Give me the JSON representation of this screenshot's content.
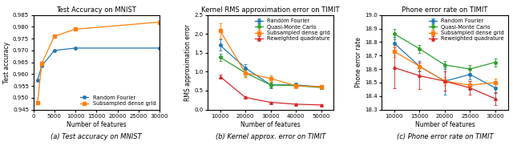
{
  "chart_data": [
    {
      "type": "line",
      "title": "Test Accuracy on MNIST",
      "x_label": "Number of features",
      "y_label": "Test accuracy",
      "annotations": [
        "(a) Test accuracy on MNIST"
      ],
      "xlim": [
        0,
        30000
      ],
      "ylim": [
        0.945,
        0.985
      ],
      "xticks": [
        0,
        5000,
        10000,
        15000,
        20000,
        25000,
        30000
      ],
      "yticks": [
        0.945,
        {
          "value": 0.95,
          "label": "0.950"
        },
        0.955,
        {
          "value": 0.96,
          "label": "0.960"
        },
        0.965,
        {
          "value": 0.97,
          "label": "0.970"
        },
        0.975,
        {
          "value": 0.98,
          "label": "0.980"
        },
        0.985
      ],
      "legend": "lower right",
      "grid": false,
      "series": [
        {
          "name": "Random Fourier",
          "marker": "o",
          "x": [
            1000,
            2000,
            5000,
            10000,
            30000
          ],
          "values": [
            0.9575,
            0.9635,
            0.97,
            0.971,
            0.971
          ]
        },
        {
          "name": "Subsampled dense grid",
          "marker": "s",
          "x": [
            1000,
            2000,
            5000,
            10000,
            30000
          ],
          "values": [
            0.948,
            0.9645,
            0.976,
            0.979,
            0.982
          ]
        }
      ]
    },
    {
      "type": "line",
      "title": "Kernel RMS approximation error on TIMIT",
      "x_label": "Number of features",
      "y_label": "RMS approximation error",
      "annotations": [
        "(b) Kernel approx. error on TIMIT"
      ],
      "xlim": [
        5000,
        55000
      ],
      "ylim": [
        0,
        2.5
      ],
      "xticks": [
        10000,
        20000,
        30000,
        40000,
        50000
      ],
      "yticks": [
        {
          "value": 0,
          "label": "0.0"
        },
        0.5,
        {
          "value": 1,
          "label": "1.0"
        },
        1.5,
        {
          "value": 2,
          "label": "2.0"
        },
        2.5
      ],
      "legend": "upper right",
      "grid": false,
      "series": [
        {
          "name": "Random Fourier",
          "marker": "o",
          "x": [
            10000,
            20000,
            30000,
            40000,
            50000
          ],
          "values": [
            1.7,
            1.1,
            0.65,
            0.65,
            0.6
          ],
          "yerr": [
            0.15,
            0.1,
            0.08,
            0.06,
            0.05
          ]
        },
        {
          "name": "Quasi-Monte Carlo",
          "marker": "o",
          "x": [
            10000,
            20000,
            30000,
            40000,
            50000
          ],
          "values": [
            1.38,
            0.97,
            0.65,
            0.63,
            0.58
          ],
          "yerr": [
            0.1,
            0.08,
            0.06,
            0.05,
            0.04
          ]
        },
        {
          "name": "Subsampled dense grid",
          "marker": "s",
          "x": [
            10000,
            20000,
            30000,
            40000,
            50000
          ],
          "values": [
            2.08,
            0.97,
            0.82,
            0.63,
            0.6
          ],
          "yerr": [
            0.2,
            0.12,
            0.08,
            0.06,
            0.05
          ]
        },
        {
          "name": "Reweighted quadrature",
          "marker": "^",
          "x": [
            10000,
            20000,
            30000,
            40000,
            50000
          ],
          "values": [
            0.87,
            0.32,
            0.19,
            0.14,
            0.12
          ],
          "yerr": [
            0.05,
            0.03,
            0.02,
            0.02,
            0.01
          ]
        }
      ]
    },
    {
      "type": "line",
      "title": "Phone error rate on TIMIT",
      "x_label": "Number of features",
      "y_label": "Phone error rate",
      "annotations": [
        "(c) Phone error rate on TIMIT"
      ],
      "xlim": [
        7500,
        32500
      ],
      "ylim": [
        18.3,
        19.0
      ],
      "xticks": [
        10000,
        15000,
        20000,
        25000,
        30000
      ],
      "yticks": [
        18.3,
        18.4,
        18.5,
        18.6,
        18.7,
        18.8,
        18.9,
        {
          "value": 19,
          "label": "19.0"
        }
      ],
      "legend": "upper right",
      "grid": false,
      "series": [
        {
          "name": "Random Fourier",
          "marker": "o",
          "x": [
            10000,
            15000,
            20000,
            25000,
            30000
          ],
          "values": [
            18.79,
            18.62,
            18.51,
            18.56,
            18.46
          ],
          "yerr": [
            0.05,
            0.04,
            0.1,
            0.04,
            0.04
          ]
        },
        {
          "name": "Quasi-Monte Carlo",
          "marker": "o",
          "x": [
            10000,
            15000,
            20000,
            25000,
            30000
          ],
          "values": [
            18.86,
            18.75,
            18.63,
            18.6,
            18.65
          ],
          "yerr": [
            0.04,
            0.03,
            0.03,
            0.03,
            0.03
          ]
        },
        {
          "name": "Subsampled dense grid",
          "marker": "s",
          "x": [
            10000,
            15000,
            20000,
            25000,
            30000
          ],
          "values": [
            18.73,
            18.62,
            18.51,
            18.48,
            18.5
          ],
          "yerr": [
            0.04,
            0.03,
            0.03,
            0.03,
            0.03
          ]
        },
        {
          "name": "Reweighted quadrature",
          "marker": "^",
          "x": [
            10000,
            15000,
            20000,
            25000,
            30000
          ],
          "values": [
            18.61,
            18.55,
            18.51,
            18.46,
            18.38
          ],
          "yerr": [
            0.15,
            0.1,
            0.07,
            0.05,
            0.05
          ]
        }
      ]
    }
  ]
}
